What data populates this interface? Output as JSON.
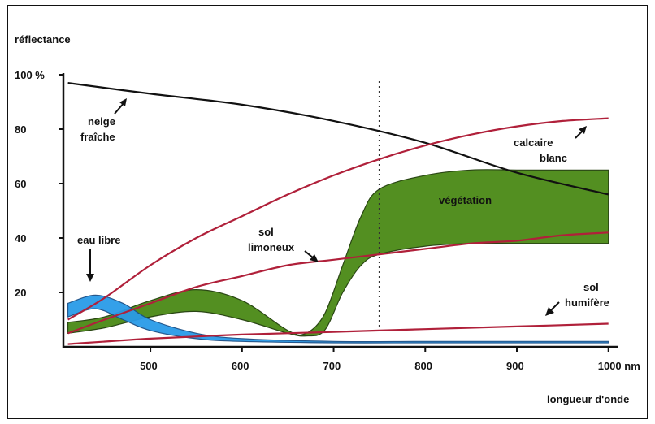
{
  "chart_data": {
    "type": "line",
    "ylabel": "réflectance",
    "xlabel": "longueur d'onde",
    "xlim": [
      405,
      1010
    ],
    "ylim": [
      0,
      100
    ],
    "y_ticks": [
      {
        "value": 100,
        "label": "100 %"
      },
      {
        "value": 80,
        "label": "80"
      },
      {
        "value": 60,
        "label": "60"
      },
      {
        "value": 40,
        "label": "40"
      },
      {
        "value": 20,
        "label": "20"
      }
    ],
    "x_ticks": [
      {
        "value": 500,
        "label": "500"
      },
      {
        "value": 600,
        "label": "600"
      },
      {
        "value": 700,
        "label": "700"
      },
      {
        "value": 800,
        "label": "800"
      },
      {
        "value": 900,
        "label": "900"
      },
      {
        "value": 1000,
        "label": "1000 nm"
      }
    ],
    "reference_line_x": 750,
    "colors": {
      "snow": "#111111",
      "soil": "#b0203a",
      "vegetation_fill": "#4a8a16",
      "water_fill": "#2a9be8",
      "band_stroke": "#1f3d08"
    },
    "series": [
      {
        "name": "neige fraîche",
        "x": [
          410,
          500,
          600,
          700,
          800,
          900,
          1000
        ],
        "y": [
          97,
          93,
          89,
          83,
          75,
          64,
          56
        ]
      },
      {
        "name": "calcaire blanc",
        "x": [
          410,
          450,
          500,
          550,
          600,
          650,
          700,
          750,
          800,
          850,
          900,
          950,
          1000
        ],
        "y": [
          10,
          18,
          30,
          40,
          48,
          56,
          63,
          69,
          74,
          78,
          81,
          83,
          84
        ]
      },
      {
        "name": "sol limoneux",
        "x": [
          410,
          450,
          500,
          550,
          600,
          650,
          700,
          750,
          800,
          850,
          900,
          950,
          1000
        ],
        "y": [
          5,
          10,
          16,
          22,
          26,
          30,
          32,
          34,
          36,
          38,
          39,
          41,
          42
        ]
      },
      {
        "name": "sol humifère",
        "x": [
          410,
          500,
          600,
          700,
          800,
          900,
          1000
        ],
        "y": [
          1,
          3,
          4.5,
          5.5,
          6.5,
          7.5,
          8.5
        ]
      }
    ],
    "bands": [
      {
        "name": "végétation",
        "x": [
          410,
          450,
          500,
          550,
          600,
          650,
          670,
          690,
          710,
          730,
          750,
          800,
          850,
          900,
          950,
          1000
        ],
        "upper": [
          9,
          11,
          17,
          21,
          17,
          6,
          5,
          12,
          30,
          48,
          58,
          63,
          65,
          65,
          65,
          65
        ],
        "lower": [
          5,
          7,
          11,
          13,
          10,
          5,
          4,
          6,
          20,
          30,
          34,
          37,
          38,
          38,
          38,
          38
        ]
      },
      {
        "name": "eau libre",
        "x": [
          410,
          440,
          470,
          500,
          550,
          600,
          700,
          800,
          900,
          1000
        ],
        "upper": [
          16,
          19,
          16,
          10,
          5,
          3,
          2,
          2,
          2,
          2
        ],
        "lower": [
          11,
          14,
          10,
          6,
          3,
          2,
          1.5,
          1.5,
          1.5,
          1.5
        ]
      }
    ],
    "annotations": {
      "neige_1": "neige",
      "neige_2": "fraîche",
      "calcaire_1": "calcaire",
      "calcaire_2": "blanc",
      "vegetation": "végétation",
      "eau": "eau libre",
      "limoneux_1": "sol",
      "limoneux_2": "limoneux",
      "humifere_1": "sol",
      "humifere_2": "humifère"
    }
  }
}
